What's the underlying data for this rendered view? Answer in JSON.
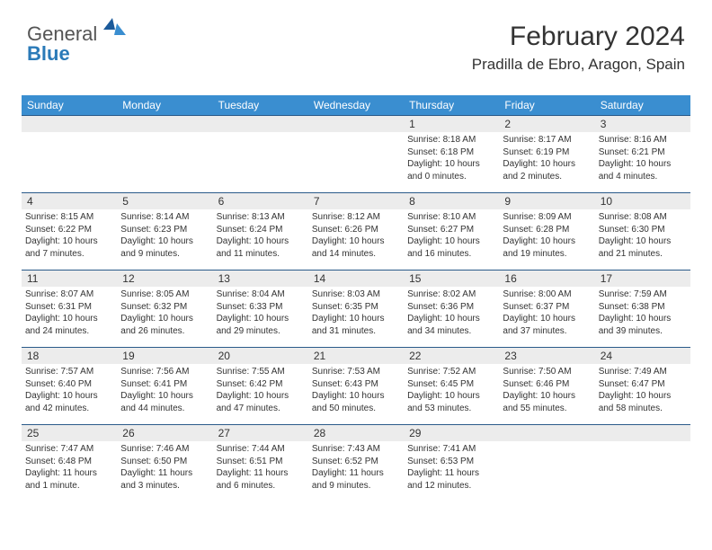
{
  "brand": {
    "text1": "General",
    "text2": "Blue"
  },
  "title": "February 2024",
  "location": "Pradilla de Ebro, Aragon, Spain",
  "colors": {
    "headerBg": "#3a8ed0",
    "headerText": "#ffffff",
    "dayBarBg": "#ececec",
    "rowBorder": "#2a5a8a",
    "bodyText": "#333333",
    "brandGray": "#555555",
    "brandBlue": "#2a7ab8"
  },
  "days": [
    "Sunday",
    "Monday",
    "Tuesday",
    "Wednesday",
    "Thursday",
    "Friday",
    "Saturday"
  ],
  "weeks": [
    [
      {
        "n": "",
        "sr": "",
        "ss": "",
        "dl": ""
      },
      {
        "n": "",
        "sr": "",
        "ss": "",
        "dl": ""
      },
      {
        "n": "",
        "sr": "",
        "ss": "",
        "dl": ""
      },
      {
        "n": "",
        "sr": "",
        "ss": "",
        "dl": ""
      },
      {
        "n": "1",
        "sr": "Sunrise: 8:18 AM",
        "ss": "Sunset: 6:18 PM",
        "dl": "Daylight: 10 hours and 0 minutes."
      },
      {
        "n": "2",
        "sr": "Sunrise: 8:17 AM",
        "ss": "Sunset: 6:19 PM",
        "dl": "Daylight: 10 hours and 2 minutes."
      },
      {
        "n": "3",
        "sr": "Sunrise: 8:16 AM",
        "ss": "Sunset: 6:21 PM",
        "dl": "Daylight: 10 hours and 4 minutes."
      }
    ],
    [
      {
        "n": "4",
        "sr": "Sunrise: 8:15 AM",
        "ss": "Sunset: 6:22 PM",
        "dl": "Daylight: 10 hours and 7 minutes."
      },
      {
        "n": "5",
        "sr": "Sunrise: 8:14 AM",
        "ss": "Sunset: 6:23 PM",
        "dl": "Daylight: 10 hours and 9 minutes."
      },
      {
        "n": "6",
        "sr": "Sunrise: 8:13 AM",
        "ss": "Sunset: 6:24 PM",
        "dl": "Daylight: 10 hours and 11 minutes."
      },
      {
        "n": "7",
        "sr": "Sunrise: 8:12 AM",
        "ss": "Sunset: 6:26 PM",
        "dl": "Daylight: 10 hours and 14 minutes."
      },
      {
        "n": "8",
        "sr": "Sunrise: 8:10 AM",
        "ss": "Sunset: 6:27 PM",
        "dl": "Daylight: 10 hours and 16 minutes."
      },
      {
        "n": "9",
        "sr": "Sunrise: 8:09 AM",
        "ss": "Sunset: 6:28 PM",
        "dl": "Daylight: 10 hours and 19 minutes."
      },
      {
        "n": "10",
        "sr": "Sunrise: 8:08 AM",
        "ss": "Sunset: 6:30 PM",
        "dl": "Daylight: 10 hours and 21 minutes."
      }
    ],
    [
      {
        "n": "11",
        "sr": "Sunrise: 8:07 AM",
        "ss": "Sunset: 6:31 PM",
        "dl": "Daylight: 10 hours and 24 minutes."
      },
      {
        "n": "12",
        "sr": "Sunrise: 8:05 AM",
        "ss": "Sunset: 6:32 PM",
        "dl": "Daylight: 10 hours and 26 minutes."
      },
      {
        "n": "13",
        "sr": "Sunrise: 8:04 AM",
        "ss": "Sunset: 6:33 PM",
        "dl": "Daylight: 10 hours and 29 minutes."
      },
      {
        "n": "14",
        "sr": "Sunrise: 8:03 AM",
        "ss": "Sunset: 6:35 PM",
        "dl": "Daylight: 10 hours and 31 minutes."
      },
      {
        "n": "15",
        "sr": "Sunrise: 8:02 AM",
        "ss": "Sunset: 6:36 PM",
        "dl": "Daylight: 10 hours and 34 minutes."
      },
      {
        "n": "16",
        "sr": "Sunrise: 8:00 AM",
        "ss": "Sunset: 6:37 PM",
        "dl": "Daylight: 10 hours and 37 minutes."
      },
      {
        "n": "17",
        "sr": "Sunrise: 7:59 AM",
        "ss": "Sunset: 6:38 PM",
        "dl": "Daylight: 10 hours and 39 minutes."
      }
    ],
    [
      {
        "n": "18",
        "sr": "Sunrise: 7:57 AM",
        "ss": "Sunset: 6:40 PM",
        "dl": "Daylight: 10 hours and 42 minutes."
      },
      {
        "n": "19",
        "sr": "Sunrise: 7:56 AM",
        "ss": "Sunset: 6:41 PM",
        "dl": "Daylight: 10 hours and 44 minutes."
      },
      {
        "n": "20",
        "sr": "Sunrise: 7:55 AM",
        "ss": "Sunset: 6:42 PM",
        "dl": "Daylight: 10 hours and 47 minutes."
      },
      {
        "n": "21",
        "sr": "Sunrise: 7:53 AM",
        "ss": "Sunset: 6:43 PM",
        "dl": "Daylight: 10 hours and 50 minutes."
      },
      {
        "n": "22",
        "sr": "Sunrise: 7:52 AM",
        "ss": "Sunset: 6:45 PM",
        "dl": "Daylight: 10 hours and 53 minutes."
      },
      {
        "n": "23",
        "sr": "Sunrise: 7:50 AM",
        "ss": "Sunset: 6:46 PM",
        "dl": "Daylight: 10 hours and 55 minutes."
      },
      {
        "n": "24",
        "sr": "Sunrise: 7:49 AM",
        "ss": "Sunset: 6:47 PM",
        "dl": "Daylight: 10 hours and 58 minutes."
      }
    ],
    [
      {
        "n": "25",
        "sr": "Sunrise: 7:47 AM",
        "ss": "Sunset: 6:48 PM",
        "dl": "Daylight: 11 hours and 1 minute."
      },
      {
        "n": "26",
        "sr": "Sunrise: 7:46 AM",
        "ss": "Sunset: 6:50 PM",
        "dl": "Daylight: 11 hours and 3 minutes."
      },
      {
        "n": "27",
        "sr": "Sunrise: 7:44 AM",
        "ss": "Sunset: 6:51 PM",
        "dl": "Daylight: 11 hours and 6 minutes."
      },
      {
        "n": "28",
        "sr": "Sunrise: 7:43 AM",
        "ss": "Sunset: 6:52 PM",
        "dl": "Daylight: 11 hours and 9 minutes."
      },
      {
        "n": "29",
        "sr": "Sunrise: 7:41 AM",
        "ss": "Sunset: 6:53 PM",
        "dl": "Daylight: 11 hours and 12 minutes."
      },
      {
        "n": "",
        "sr": "",
        "ss": "",
        "dl": ""
      },
      {
        "n": "",
        "sr": "",
        "ss": "",
        "dl": ""
      }
    ]
  ]
}
